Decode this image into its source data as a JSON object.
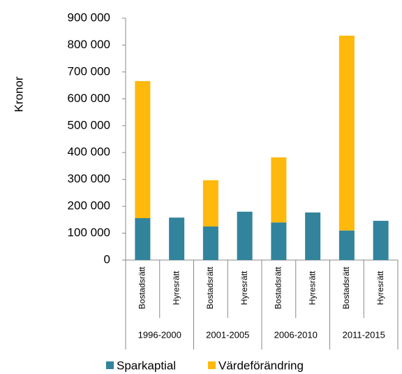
{
  "chart_data": {
    "type": "bar",
    "stacked": true,
    "y_label": "Kronor",
    "categories": [
      "Bostadsrätt",
      "Hyresrätt",
      "Bostadsrätt",
      "Hyresrätt",
      "Bostadsrätt",
      "Hyresrätt",
      "Bostadsrätt",
      "Hyresrätt"
    ],
    "groups": [
      "1996-2000",
      "2001-2005",
      "2006-2010",
      "2011-2015"
    ],
    "series": [
      {
        "name": "Sparkaptial",
        "color": "#31849b",
        "values": [
          156000,
          158000,
          125000,
          180000,
          140000,
          177000,
          110000,
          146000
        ]
      },
      {
        "name": "Värdeförändring",
        "color": "#ffb80c",
        "values": [
          510000,
          0,
          172000,
          0,
          242000,
          0,
          725000,
          0
        ]
      }
    ],
    "ylim": [
      0,
      900000
    ],
    "yticks": [
      {
        "value": 0,
        "label": "0"
      },
      {
        "value": 100000,
        "label": "100 000"
      },
      {
        "value": 200000,
        "label": "200 000"
      },
      {
        "value": 300000,
        "label": "300 000"
      },
      {
        "value": 400000,
        "label": "400 000"
      },
      {
        "value": 500000,
        "label": "500 000"
      },
      {
        "value": 600000,
        "label": "600 000"
      },
      {
        "value": 700000,
        "label": "700 000"
      },
      {
        "value": 800000,
        "label": "800 000"
      },
      {
        "value": 900000,
        "label": "900 000"
      }
    ],
    "legend": "bottom"
  }
}
